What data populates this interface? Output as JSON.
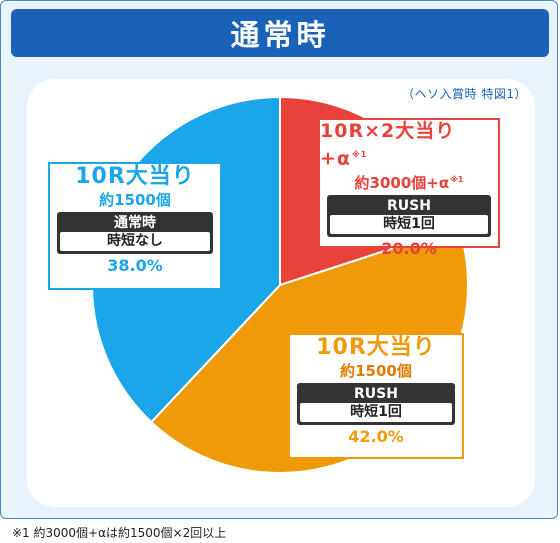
{
  "title": "通常時",
  "caption": "（ヘソ入賞時 特図1）",
  "footnote": "※1 約3000個+αは約1500個×2回以上",
  "colors": {
    "blue": "#1aa6e8",
    "red": "#e8423a",
    "orange": "#f09a0a",
    "title_bg": "#1a62b8"
  },
  "chart_data": {
    "type": "pie",
    "slices": [
      {
        "label": "10R×2大当り+α",
        "note": "※1",
        "balls": "約3000個+α",
        "mode": "RUSH",
        "mode_detail": "時短1回",
        "value": 20.0,
        "percent_text": "20.0%",
        "color": "#e8423a"
      },
      {
        "label": "10R大当り",
        "balls": "約1500個",
        "mode": "RUSH",
        "mode_detail": "時短1回",
        "value": 42.0,
        "percent_text": "42.0%",
        "color": "#f09a0a"
      },
      {
        "label": "10R大当り",
        "balls": "約1500個",
        "mode": "通常時",
        "mode_detail": "時短なし",
        "value": 38.0,
        "percent_text": "38.0%",
        "color": "#1aa6e8"
      }
    ]
  }
}
